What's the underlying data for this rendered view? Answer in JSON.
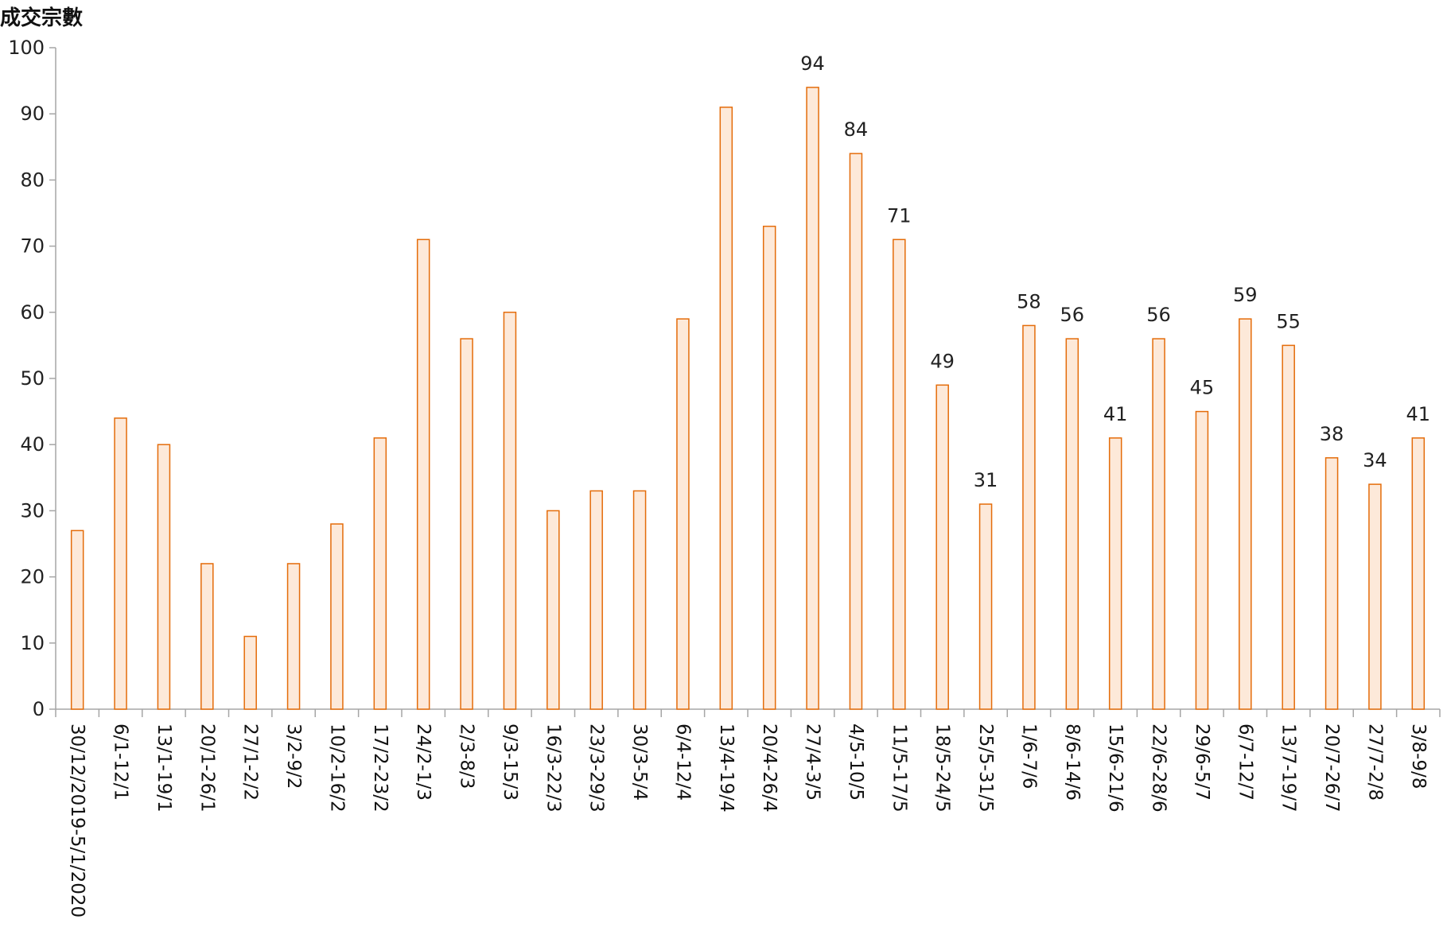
{
  "chart_data": {
    "type": "bar",
    "ylabel": "成交宗數",
    "ylim": [
      0,
      100
    ],
    "yticks": [
      0,
      10,
      20,
      30,
      40,
      50,
      60,
      70,
      80,
      90,
      100
    ],
    "categories": [
      "30/12/2019-5/1/2020",
      "6/1-12/1",
      "13/1-19/1",
      "20/1-26/1",
      "27/1-2/2",
      "3/2-9/2",
      "10/2-16/2",
      "17/2-23/2",
      "24/2-1/3",
      "2/3-8/3",
      "9/3-15/3",
      "16/3-22/3",
      "23/3-29/3",
      "30/3-5/4",
      "6/4-12/4",
      "13/4-19/4",
      "20/4-26/4",
      "27/4-3/5",
      "4/5-10/5",
      "11/5-17/5",
      "18/5-24/5",
      "25/5-31/5",
      "1/6-7/6",
      "8/6-14/6",
      "15/6-21/6",
      "22/6-28/6",
      "29/6-5/7",
      "6/7-12/7",
      "13/7-19/7",
      "20/7-26/7",
      "27/7-2/8",
      "3/8-9/8"
    ],
    "values": [
      27,
      44,
      40,
      22,
      11,
      22,
      28,
      41,
      71,
      56,
      60,
      30,
      33,
      33,
      59,
      91,
      73,
      94,
      84,
      71,
      49,
      31,
      58,
      56,
      41,
      56,
      45,
      59,
      55,
      38,
      34,
      41
    ],
    "data_labels": [
      null,
      null,
      null,
      null,
      null,
      null,
      null,
      null,
      null,
      null,
      null,
      null,
      null,
      null,
      null,
      null,
      null,
      "94",
      "84",
      "71",
      "49",
      "31",
      "58",
      "56",
      "41",
      "56",
      "45",
      "59",
      "55",
      "38",
      "34",
      "41"
    ],
    "grid": false,
    "legend": "none",
    "colors": {
      "bar_fill": "#FDE9D9",
      "bar_stroke": "#E46C0A",
      "axis": "#A6A6A6"
    }
  }
}
